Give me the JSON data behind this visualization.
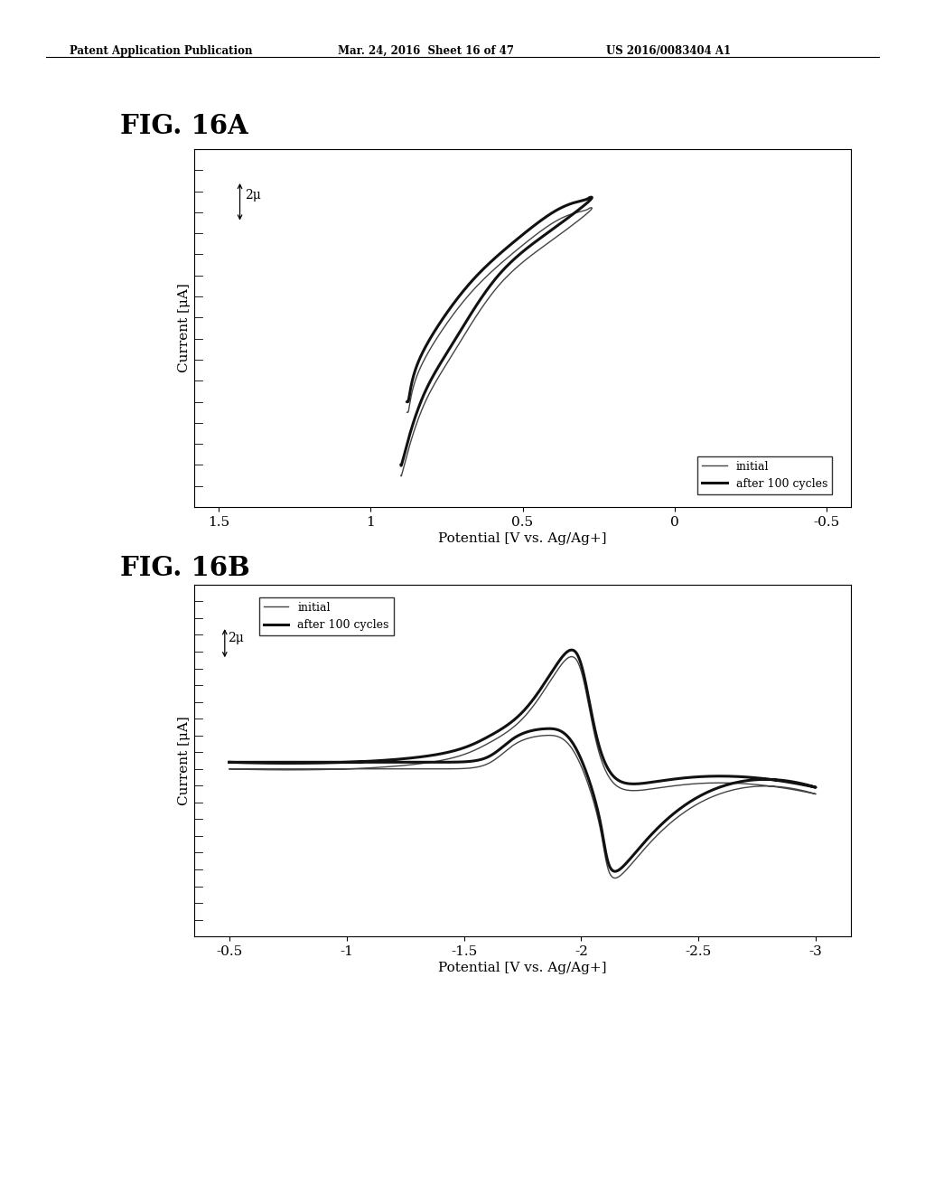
{
  "header_left": "Patent Application Publication",
  "header_mid": "Mar. 24, 2016  Sheet 16 of 47",
  "header_right": "US 2016/0083404 A1",
  "fig_a_label": "FIG. 16A",
  "fig_b_label": "FIG. 16B",
  "fig_a_xlabel": "Potential [V vs. Ag/Ag+]",
  "fig_a_ylabel": "Current [μA]",
  "fig_a_xticks_vals": [
    1.5,
    1.0,
    0.5,
    0.0,
    -0.5
  ],
  "fig_a_xticks_labels": [
    "1.5",
    "1",
    "0.5",
    "0",
    "-0.5"
  ],
  "fig_a_xlim": [
    1.58,
    -0.58
  ],
  "fig_a_ylim": [
    -5,
    12
  ],
  "fig_a_scale_label": "2μ",
  "fig_b_xlabel": "Potential [V vs. Ag/Ag+]",
  "fig_b_ylabel": "Current [μA]",
  "fig_b_xticks_vals": [
    -0.5,
    -1.0,
    -1.5,
    -2.0,
    -2.5,
    -3.0
  ],
  "fig_b_xticks_labels": [
    "-0.5",
    "-1",
    "-1.5",
    "-2",
    "-2.5",
    "-3"
  ],
  "fig_b_xlim": [
    -0.35,
    -3.15
  ],
  "fig_b_ylim": [
    -10,
    11
  ],
  "fig_b_scale_label": "2μ",
  "legend_initial": "initial",
  "legend_after": "after 100 cycles",
  "line_thin_color": "#444444",
  "line_thick_color": "#111111",
  "thin_lw": 1.0,
  "thick_lw": 2.2
}
